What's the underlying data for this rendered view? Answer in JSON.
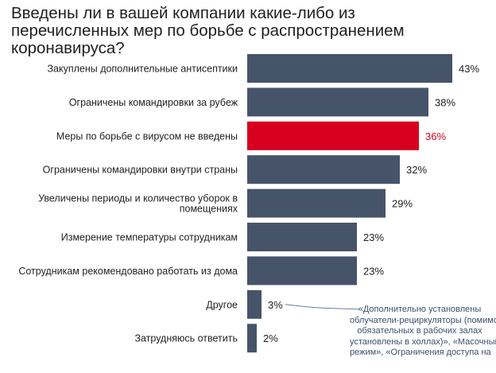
{
  "title_lines": [
    "Введены ли в вашей компании какие-либо из",
    "перечисленных  мер по борьбе с распространением",
    "коронавируса?"
  ],
  "chart_data": {
    "type": "bar",
    "orientation": "horizontal",
    "title": "Введены ли в вашей компании какие-либо из перечисленных  мер по борьбе с распространением коронавируса?",
    "categories": [
      [
        "Закуплены дополнительные  антисептики"
      ],
      [
        "Ограничены командировки за рубеж"
      ],
      [
        "Меры по борьбе с вирусом не введены"
      ],
      [
        "Ограничены командировки внутри страны"
      ],
      [
        "Увеличены периоды и количество уборок в",
        "помещениях"
      ],
      [
        "Измерение температуры сотрудникам"
      ],
      [
        "Сотрудникам рекомендовано работать из дома"
      ],
      [
        "Другое"
      ],
      [
        "Затрудняюсь ответить"
      ]
    ],
    "values": [
      43,
      38,
      36,
      32,
      29,
      23,
      23,
      3,
      2
    ],
    "value_labels": [
      "43%",
      "38%",
      "36%",
      "32%",
      "29%",
      "23%",
      "23%",
      "3%",
      "2%"
    ],
    "highlight_index": 2,
    "colors": {
      "bar": "#465469",
      "highlight": "#d7001e",
      "text": "#222222",
      "highlight_text": "#d7001e",
      "leader": "#6a7d9c"
    },
    "xlim": [
      0,
      45
    ],
    "grid": false,
    "annotation": {
      "for_category": "Другое",
      "lines": [
        "«Дополнительно установлены",
        "облучатели-рециркуляторы (помимо",
        "обязательных в рабочих залах",
        "установлены в холлах)»,  «Масочный",
        "режим», «Ограничения доступа на"
      ]
    }
  }
}
